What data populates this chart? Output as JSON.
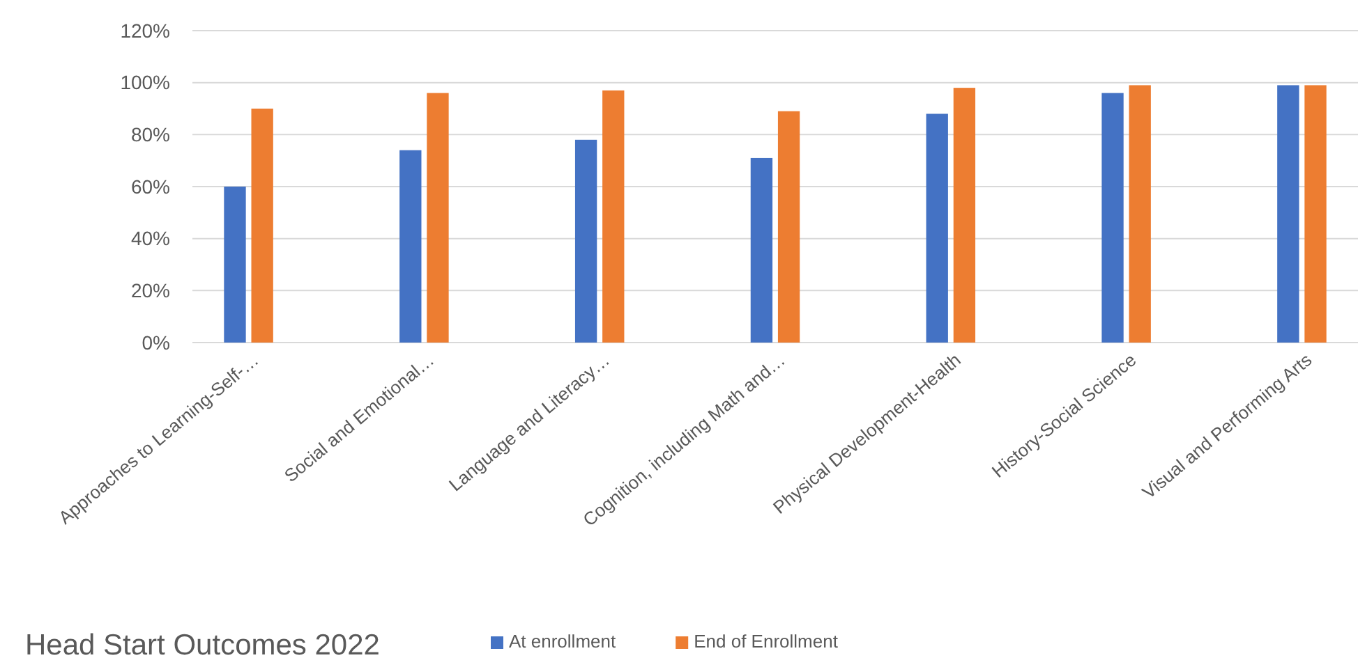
{
  "chart_data": {
    "type": "bar",
    "title": "Head Start Outcomes 2022",
    "categories": [
      "Approaches to Learning-Self-…",
      "Social and Emotional…",
      "Language and Literacy…",
      "Cognition, including Math and…",
      "Physical Development-Health",
      "History-Social Science",
      "Visual and Performing Arts"
    ],
    "series": [
      {
        "name": "At enrollment",
        "color": "#4472c4",
        "values": [
          60,
          74,
          78,
          71,
          88,
          96,
          99
        ]
      },
      {
        "name": "End of Enrollment",
        "color": "#ed7d31",
        "values": [
          90,
          96,
          97,
          89,
          98,
          99,
          99
        ]
      }
    ],
    "ylim": [
      0,
      120
    ],
    "yticks": [
      {
        "value": 0,
        "label": "0%"
      },
      {
        "value": 20,
        "label": "20%"
      },
      {
        "value": 40,
        "label": "40%"
      },
      {
        "value": 60,
        "label": "60%"
      },
      {
        "value": 80,
        "label": "80%"
      },
      {
        "value": 100,
        "label": "100%"
      },
      {
        "value": 120,
        "label": "120%"
      }
    ],
    "grid": "y",
    "legend": "bottom"
  }
}
